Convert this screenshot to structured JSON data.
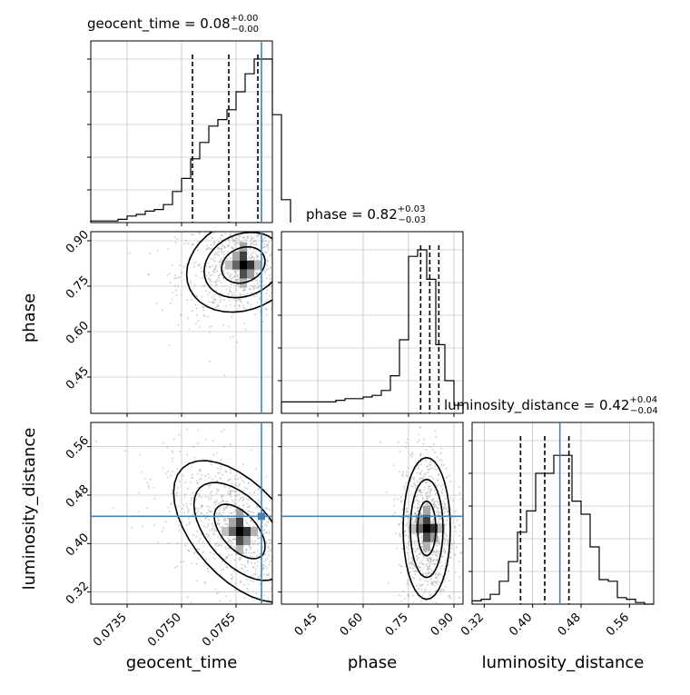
{
  "parameters": [
    "geocent_time",
    "phase",
    "luminosity_distance"
  ],
  "titles": {
    "geocent_time": {
      "prefix": "geocent_time = 0.08",
      "sup": "+0.00",
      "sub": "−0.00"
    },
    "phase": {
      "prefix": "phase = 0.82",
      "sup": "+0.03",
      "sub": "−0.03"
    },
    "luminosity_distance": {
      "prefix": "luminosity_distance = 0.42",
      "sup": "+0.04",
      "sub": "−0.04"
    }
  },
  "axis_labels": {
    "x": [
      "geocent_time",
      "phase",
      "luminosity_distance"
    ],
    "y": [
      "phase",
      "luminosity_distance"
    ]
  },
  "ticks": {
    "geocent_time": [
      "0.0735",
      "0.0750",
      "0.0765"
    ],
    "phase": [
      "0.45",
      "0.60",
      "0.75",
      "0.90"
    ],
    "luminosity_distance": [
      "0.32",
      "0.40",
      "0.48",
      "0.56"
    ]
  },
  "colors": {
    "truth": "#4682b4",
    "hist": "#000000",
    "points": "#9e9e9e",
    "grid": "#b0b0b0"
  },
  "chart_data": {
    "type": "corner",
    "truths": {
      "geocent_time": 0.0772,
      "phase": null,
      "luminosity_distance": 0.445
    },
    "ranges": {
      "geocent_time": [
        0.0725,
        0.0775
      ],
      "phase": [
        0.33,
        0.93
      ],
      "luminosity_distance": [
        0.3,
        0.6
      ]
    },
    "quantiles": {
      "geocent_time": [
        0.0753,
        0.0763,
        0.0771
      ],
      "phase": [
        0.79,
        0.82,
        0.85
      ],
      "luminosity_distance": [
        0.38,
        0.42,
        0.46
      ]
    },
    "histograms": {
      "geocent_time": {
        "edges_start": 0.0725,
        "bin_width": 0.00025,
        "counts": [
          0.01,
          0.01,
          0.01,
          0.02,
          0.04,
          0.05,
          0.07,
          0.08,
          0.11,
          0.19,
          0.27,
          0.39,
          0.49,
          0.59,
          0.63,
          0.69,
          0.8,
          0.91,
          1.0,
          1.0,
          0.66,
          0.14
        ]
      },
      "phase": {
        "edges_start": 0.33,
        "bin_width": 0.03,
        "counts": [
          0.07,
          0.07,
          0.07,
          0.07,
          0.07,
          0.07,
          0.08,
          0.09,
          0.09,
          0.1,
          0.11,
          0.14,
          0.23,
          0.45,
          0.96,
          1.0,
          0.82,
          0.42,
          0.2,
          0.05
        ]
      },
      "luminosity_distance": {
        "edges_start": 0.3,
        "bin_width": 0.015,
        "counts": [
          0.02,
          0.03,
          0.06,
          0.14,
          0.26,
          0.44,
          0.57,
          0.8,
          0.8,
          0.91,
          0.91,
          0.63,
          0.55,
          0.35,
          0.15,
          0.14,
          0.04,
          0.03,
          0.01,
          0.0
        ]
      }
    },
    "scatter_points_per_panel": 900
  }
}
